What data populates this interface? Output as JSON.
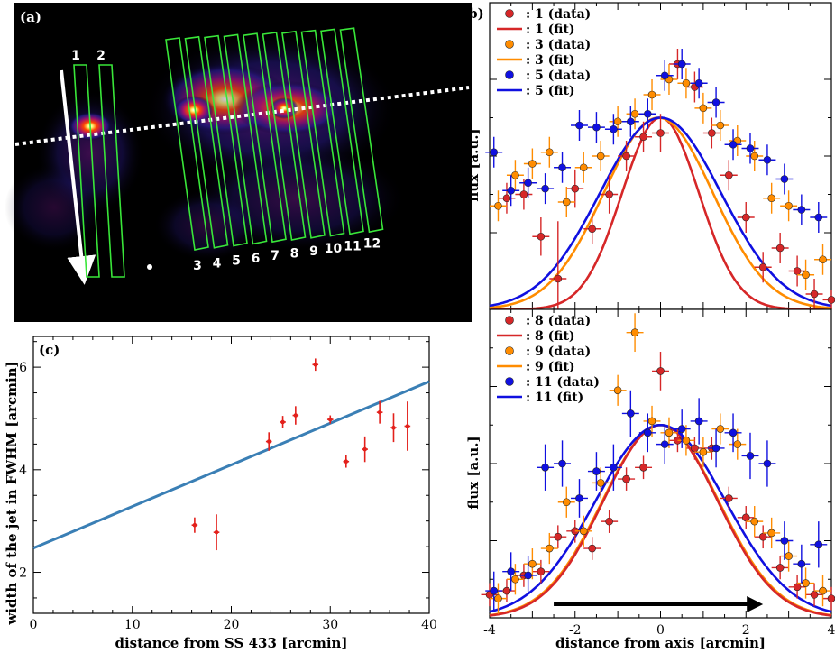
{
  "panel_a": {
    "label": "(a)",
    "top_labels": [
      "1",
      "2"
    ],
    "bottom_labels": [
      "3",
      "4",
      "5",
      "6",
      "7",
      "8",
      "9",
      "10",
      "11",
      "12"
    ]
  },
  "chart_data": [
    {
      "id": "c",
      "type": "scatter",
      "label": "(c)",
      "xlabel": "distance from SS 433 [arcmin]",
      "ylabel": "width of the jet in FWHM [arcmin]",
      "xlim": [
        0,
        40
      ],
      "ylim": [
        1.2,
        6.6
      ],
      "xticks": [
        0,
        10,
        20,
        30,
        40
      ],
      "yticks": [
        2,
        4,
        6
      ],
      "points": [
        {
          "x": 16.3,
          "y": 2.92,
          "xerr": 0.3,
          "yerr": 0.15
        },
        {
          "x": 18.5,
          "y": 2.78,
          "xerr": 0.3,
          "yerr": 0.35
        },
        {
          "x": 23.8,
          "y": 4.55,
          "xerr": 0.3,
          "yerr": 0.18
        },
        {
          "x": 25.2,
          "y": 4.93,
          "xerr": 0.3,
          "yerr": 0.12
        },
        {
          "x": 26.5,
          "y": 5.06,
          "xerr": 0.3,
          "yerr": 0.18
        },
        {
          "x": 28.5,
          "y": 6.05,
          "xerr": 0.3,
          "yerr": 0.12
        },
        {
          "x": 30.0,
          "y": 4.98,
          "xerr": 0.3,
          "yerr": 0.08
        },
        {
          "x": 31.6,
          "y": 4.16,
          "xerr": 0.3,
          "yerr": 0.12
        },
        {
          "x": 33.5,
          "y": 4.4,
          "xerr": 0.3,
          "yerr": 0.25
        },
        {
          "x": 35.0,
          "y": 5.12,
          "xerr": 0.3,
          "yerr": 0.22
        },
        {
          "x": 36.4,
          "y": 4.82,
          "xerr": 0.3,
          "yerr": 0.28
        },
        {
          "x": 37.8,
          "y": 4.85,
          "xerr": 0.3,
          "yerr": 0.48
        }
      ],
      "fit_line": {
        "x": [
          0,
          40
        ],
        "y": [
          2.47,
          5.72
        ],
        "color": "#3a7fb5"
      },
      "marker_color": "#e3201b"
    },
    {
      "id": "b_top",
      "type": "scatter+line",
      "label": "(b)",
      "xlabel": "",
      "ylabel": "flux [a.u.]",
      "xlim": [
        -4,
        4
      ],
      "ylim": [
        0,
        1.6
      ],
      "legend": [
        {
          "label": ": 1 (data)",
          "kind": "marker",
          "color": "#d62728"
        },
        {
          "label": ": 1 (fit)",
          "kind": "line",
          "color": "#d62728"
        },
        {
          "label": ": 3 (data)",
          "kind": "marker",
          "color": "#ff8c00"
        },
        {
          "label": ": 3 (fit)",
          "kind": "line",
          "color": "#ff8c00"
        },
        {
          "label": ": 5 (data)",
          "kind": "marker",
          "color": "#1010e0"
        },
        {
          "label": ": 5 (fit)",
          "kind": "line",
          "color": "#1010e0"
        }
      ],
      "fits": [
        {
          "name": "1",
          "color": "#d62728",
          "amp": 1.0,
          "center": 0.0,
          "sigma": 0.9
        },
        {
          "name": "3",
          "color": "#ff8c00",
          "amp": 1.0,
          "center": -0.05,
          "sigma": 1.28
        },
        {
          "name": "5",
          "color": "#1010e0",
          "amp": 1.0,
          "center": 0.0,
          "sigma": 1.42
        }
      ],
      "series": [
        {
          "name": "1 (data)",
          "color": "#d62728",
          "x": [
            -3.6,
            -3.2,
            -2.8,
            -2.4,
            -2.0,
            -1.6,
            -1.2,
            -0.8,
            -0.4,
            0.0,
            0.4,
            0.8,
            1.2,
            1.6,
            2.0,
            2.4,
            2.8,
            3.2,
            3.6,
            4.0
          ],
          "y": [
            0.58,
            0.6,
            0.38,
            0.16,
            0.63,
            0.42,
            0.6,
            0.8,
            0.9,
            0.92,
            1.28,
            1.16,
            0.92,
            0.7,
            0.48,
            0.22,
            0.32,
            0.2,
            0.08,
            0.05
          ],
          "yerr": [
            0.08,
            0.08,
            0.1,
            0.3,
            0.1,
            0.08,
            0.1,
            0.08,
            0.08,
            0.1,
            0.08,
            0.08,
            0.08,
            0.08,
            0.08,
            0.08,
            0.08,
            0.08,
            0.08,
            0.05
          ]
        },
        {
          "name": "3 (data)",
          "color": "#ff8c00",
          "x": [
            -3.8,
            -3.4,
            -3.0,
            -2.6,
            -2.2,
            -1.8,
            -1.4,
            -1.0,
            -0.6,
            -0.2,
            0.2,
            0.6,
            1.0,
            1.4,
            1.8,
            2.2,
            2.6,
            3.0,
            3.4,
            3.8
          ],
          "y": [
            0.54,
            0.7,
            0.76,
            0.82,
            0.56,
            0.74,
            0.8,
            0.98,
            1.02,
            1.12,
            1.2,
            1.18,
            1.05,
            0.96,
            0.88,
            0.8,
            0.58,
            0.54,
            0.18,
            0.26
          ],
          "yerr": [
            0.08,
            0.08,
            0.08,
            0.08,
            0.08,
            0.08,
            0.08,
            0.08,
            0.08,
            0.08,
            0.08,
            0.08,
            0.08,
            0.08,
            0.08,
            0.08,
            0.08,
            0.08,
            0.08,
            0.08
          ]
        },
        {
          "name": "5 (data)",
          "color": "#1010e0",
          "x": [
            -3.9,
            -3.5,
            -3.1,
            -2.7,
            -2.3,
            -1.9,
            -1.5,
            -1.1,
            -0.7,
            -0.3,
            0.1,
            0.5,
            0.9,
            1.3,
            1.7,
            2.1,
            2.5,
            2.9,
            3.3,
            3.7
          ],
          "y": [
            0.82,
            0.62,
            0.66,
            0.63,
            0.74,
            0.96,
            0.95,
            0.94,
            0.98,
            1.02,
            1.22,
            1.28,
            1.18,
            1.08,
            0.86,
            0.84,
            0.78,
            0.68,
            0.52,
            0.48
          ],
          "yerr": [
            0.08,
            0.08,
            0.08,
            0.08,
            0.08,
            0.08,
            0.08,
            0.08,
            0.08,
            0.08,
            0.08,
            0.08,
            0.08,
            0.08,
            0.08,
            0.08,
            0.08,
            0.08,
            0.08,
            0.08
          ]
        }
      ]
    },
    {
      "id": "b_bottom",
      "type": "scatter+line",
      "label": "",
      "xlabel": "distance from axis [arcmin]",
      "ylabel": "flux [a.u.]",
      "xlim": [
        -4,
        4
      ],
      "xticks": [
        -4,
        -2,
        0,
        2,
        4
      ],
      "ylim": [
        0,
        1.6
      ],
      "arrow": {
        "from": -2.5,
        "to": 2.4,
        "y": 0.07
      },
      "legend": [
        {
          "label": ": 8 (data)",
          "kind": "marker",
          "color": "#d62728"
        },
        {
          "label": ": 8 (fit)",
          "kind": "line",
          "color": "#d62728"
        },
        {
          "label": ": 9 (data)",
          "kind": "marker",
          "color": "#ff8c00"
        },
        {
          "label": ": 9 (fit)",
          "kind": "line",
          "color": "#ff8c00"
        },
        {
          "label": ": 11 (data)",
          "kind": "marker",
          "color": "#1010e0"
        },
        {
          "label": ": 11 (fit)",
          "kind": "line",
          "color": "#1010e0"
        }
      ],
      "fits": [
        {
          "name": "9",
          "color": "#ff8c00",
          "amp": 1.0,
          "center": 0.0,
          "sigma": 1.36
        },
        {
          "name": "8",
          "color": "#d62728",
          "amp": 1.0,
          "center": 0.0,
          "sigma": 1.34
        },
        {
          "name": "11",
          "color": "#1010e0",
          "amp": 1.0,
          "center": 0.0,
          "sigma": 1.52
        }
      ],
      "series": [
        {
          "name": "8 (data)",
          "color": "#d62728",
          "x": [
            -4.0,
            -3.6,
            -3.2,
            -2.8,
            -2.4,
            -2.0,
            -1.6,
            -1.2,
            -0.8,
            -0.4,
            0.0,
            0.4,
            0.8,
            1.2,
            1.6,
            2.0,
            2.4,
            2.8,
            3.2,
            3.6,
            4.0
          ],
          "y": [
            0.12,
            0.14,
            0.22,
            0.24,
            0.42,
            0.45,
            0.36,
            0.5,
            0.72,
            0.78,
            1.28,
            0.92,
            0.88,
            0.88,
            0.62,
            0.52,
            0.42,
            0.26,
            0.16,
            0.12,
            0.1
          ],
          "yerr": [
            0.06,
            0.06,
            0.06,
            0.06,
            0.06,
            0.06,
            0.06,
            0.06,
            0.06,
            0.06,
            0.1,
            0.06,
            0.06,
            0.06,
            0.06,
            0.06,
            0.06,
            0.06,
            0.06,
            0.06,
            0.06
          ]
        },
        {
          "name": "9 (data)",
          "color": "#ff8c00",
          "x": [
            -3.8,
            -3.4,
            -3.0,
            -2.6,
            -2.2,
            -1.8,
            -1.4,
            -1.0,
            -0.6,
            -0.2,
            0.2,
            0.6,
            1.0,
            1.4,
            1.8,
            2.2,
            2.6,
            3.0,
            3.4,
            3.8
          ],
          "y": [
            0.1,
            0.2,
            0.28,
            0.36,
            0.6,
            0.45,
            0.7,
            1.18,
            1.48,
            1.02,
            0.96,
            0.92,
            0.86,
            0.98,
            0.9,
            0.5,
            0.44,
            0.32,
            0.18,
            0.14
          ],
          "yerr": [
            0.08,
            0.08,
            0.08,
            0.08,
            0.08,
            0.08,
            0.08,
            0.08,
            0.1,
            0.08,
            0.08,
            0.08,
            0.08,
            0.08,
            0.08,
            0.08,
            0.08,
            0.08,
            0.08,
            0.08
          ]
        },
        {
          "name": "11 (data)",
          "color": "#1010e0",
          "x": [
            -3.9,
            -3.5,
            -3.1,
            -2.7,
            -2.3,
            -1.9,
            -1.5,
            -1.1,
            -0.7,
            -0.3,
            0.1,
            0.5,
            0.9,
            1.3,
            1.7,
            2.1,
            2.5,
            2.9,
            3.3,
            3.7
          ],
          "y": [
            0.14,
            0.24,
            0.22,
            0.78,
            0.8,
            0.62,
            0.76,
            0.78,
            1.06,
            0.96,
            0.9,
            0.98,
            1.02,
            0.88,
            0.96,
            0.84,
            0.8,
            0.4,
            0.28,
            0.38
          ],
          "yerr": [
            0.1,
            0.1,
            0.1,
            0.12,
            0.12,
            0.1,
            0.1,
            0.12,
            0.12,
            0.1,
            0.1,
            0.1,
            0.12,
            0.1,
            0.1,
            0.12,
            0.12,
            0.1,
            0.1,
            0.12
          ]
        }
      ]
    }
  ]
}
